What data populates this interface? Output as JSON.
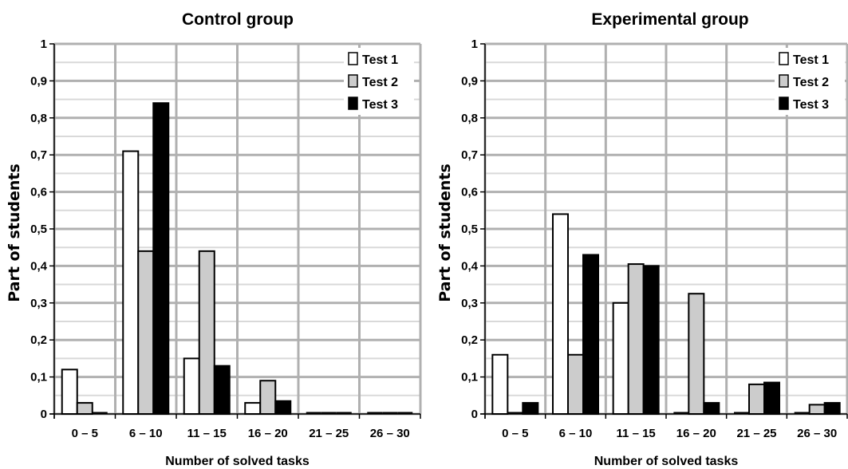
{
  "chart_data": [
    {
      "type": "bar",
      "title": "Control group",
      "xlabel": "Number of solved tasks",
      "ylabel": "Part of students",
      "ylim": [
        0,
        1
      ],
      "yticks": [
        "0",
        "0,1",
        "0,2",
        "0,3",
        "0,4",
        "0,5",
        "0,6",
        "0,7",
        "0,8",
        "0,9",
        "1"
      ],
      "categories": [
        "0 – 5",
        "6 – 10",
        "11 – 15",
        "16 – 20",
        "21 – 25",
        "26 – 30"
      ],
      "series": [
        {
          "name": "Test 1",
          "color": "#ffffff",
          "values": [
            0.12,
            0.71,
            0.15,
            0.03,
            0.0,
            0.0
          ]
        },
        {
          "name": "Test 2",
          "color": "#cccccc",
          "values": [
            0.03,
            0.44,
            0.44,
            0.09,
            0.0,
            0.0
          ]
        },
        {
          "name": "Test 3",
          "color": "#000000",
          "values": [
            0.0,
            0.84,
            0.13,
            0.035,
            0.0,
            0.0
          ]
        }
      ],
      "grid": true,
      "legend": "top-right"
    },
    {
      "type": "bar",
      "title": "Experimental group",
      "xlabel": "Number of solved tasks",
      "ylabel": "Part of students",
      "ylim": [
        0,
        1
      ],
      "yticks": [
        "0",
        "0,1",
        "0,2",
        "0,3",
        "0,4",
        "0,5",
        "0,6",
        "0,7",
        "0,8",
        "0,9",
        "1"
      ],
      "categories": [
        "0 – 5",
        "6 – 10",
        "11 – 15",
        "16 – 20",
        "21 – 25",
        "26 – 30"
      ],
      "series": [
        {
          "name": "Test 1",
          "color": "#ffffff",
          "values": [
            0.16,
            0.54,
            0.3,
            0.0,
            0.0,
            0.0
          ]
        },
        {
          "name": "Test 2",
          "color": "#cccccc",
          "values": [
            0.0,
            0.16,
            0.405,
            0.325,
            0.08,
            0.025
          ]
        },
        {
          "name": "Test 3",
          "color": "#000000",
          "values": [
            0.03,
            0.43,
            0.4,
            0.03,
            0.085,
            0.03
          ]
        }
      ],
      "grid": true,
      "legend": "top-right"
    }
  ]
}
